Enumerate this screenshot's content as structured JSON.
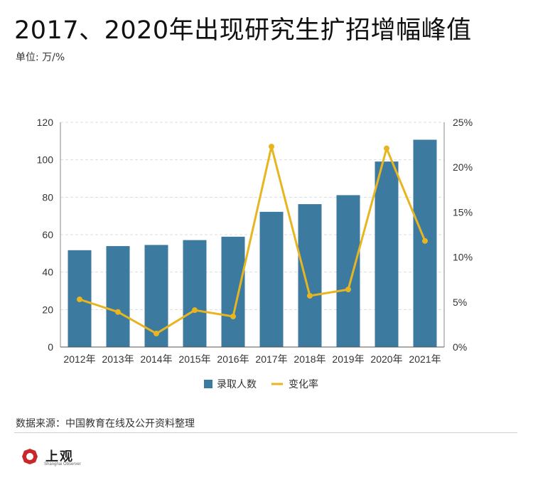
{
  "title": "2017、2020年出现研究生扩招增幅峰值",
  "unit_label": "单位: 万/%",
  "source": "数据来源：中国教育在线及公开资料整理",
  "logo": {
    "text": "上观",
    "sub": "Shanghai Observer"
  },
  "colors": {
    "bar": "#3c7aa0",
    "line": "#e8b520",
    "grid": "#dddddd",
    "axis": "#333333"
  },
  "chart_data": {
    "type": "bar",
    "categories": [
      "2012年",
      "2013年",
      "2014年",
      "2015年",
      "2016年",
      "2017年",
      "2018年",
      "2019年",
      "2020年",
      "2021年"
    ],
    "series": [
      {
        "name": "录取人数",
        "type": "bar",
        "axis": "left",
        "values": [
          51.7,
          53.9,
          54.5,
          57.1,
          58.9,
          72.2,
          76.3,
          81.1,
          99.05,
          110.7
        ]
      },
      {
        "name": "变化率",
        "type": "line",
        "axis": "right",
        "values": [
          5.3,
          3.9,
          1.5,
          4.1,
          3.4,
          22.3,
          5.7,
          6.4,
          22.1,
          11.8
        ]
      }
    ],
    "ylim_left": [
      0,
      120
    ],
    "yticks_left": [
      "0",
      "20",
      "40",
      "60",
      "80",
      "100",
      "120"
    ],
    "ylim_right": [
      0,
      25
    ],
    "yticks_right": [
      "0%",
      "5%",
      "10%",
      "15%",
      "20%",
      "25%"
    ],
    "legend": "bottom",
    "grid": true
  }
}
